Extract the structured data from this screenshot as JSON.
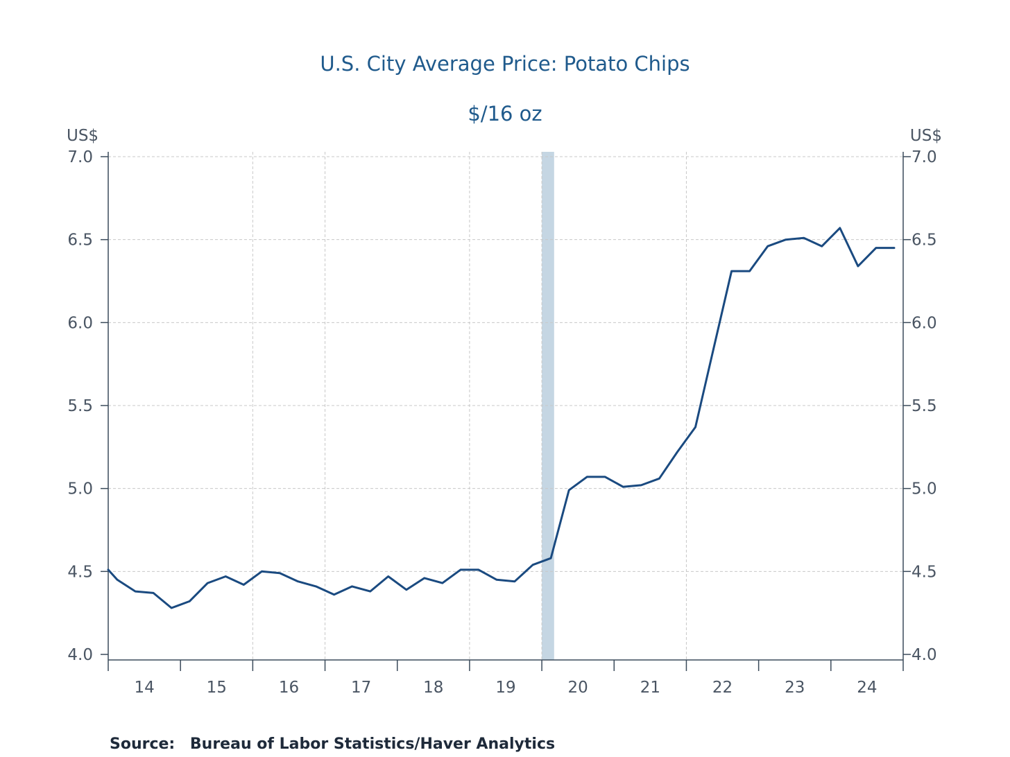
{
  "chart_data": {
    "type": "line",
    "title": "U.S. City Average Price: Potato Chips",
    "subtitle": "$/16 oz",
    "ylabel_left": "US$",
    "ylabel_right": "US$",
    "ylim": [
      4.0,
      7.0
    ],
    "y_ticks": [
      "7.0",
      "6.5",
      "6.0",
      "5.5",
      "5.0",
      "4.5",
      "4.0"
    ],
    "x_tick_labels": [
      "14",
      "15",
      "16",
      "17",
      "18",
      "19",
      "20",
      "21",
      "22",
      "23",
      "24"
    ],
    "x_range": [
      2014.0,
      2025.0
    ],
    "grid": true,
    "recession_shading": {
      "start": 2020.0,
      "end": 2020.17
    },
    "colors": {
      "line": "#1a4a80",
      "recession": "#c5d6e3",
      "axis": "#3a4a5a",
      "grid": "#c8c8c8",
      "title": "#1f5a8c"
    },
    "series": [
      {
        "x": [
          2014.0,
          2014.125,
          2014.375,
          2014.625,
          2014.875,
          2015.125,
          2015.375,
          2015.625,
          2015.875,
          2016.125,
          2016.375,
          2016.625,
          2016.875,
          2017.125,
          2017.375,
          2017.625,
          2017.875,
          2018.125,
          2018.375,
          2018.625,
          2018.875,
          2019.125,
          2019.375,
          2019.625,
          2019.875,
          2020.125,
          2020.375,
          2020.625,
          2020.875,
          2021.125,
          2021.375,
          2021.625,
          2021.875,
          2022.125,
          2022.375,
          2022.625,
          2022.875,
          2023.125,
          2023.375,
          2023.625,
          2023.875,
          2024.125,
          2024.375,
          2024.625,
          2024.875
        ],
        "values": [
          4.51,
          4.45,
          4.38,
          4.37,
          4.28,
          4.32,
          4.43,
          4.47,
          4.42,
          4.5,
          4.49,
          4.44,
          4.41,
          4.36,
          4.41,
          4.38,
          4.47,
          4.39,
          4.46,
          4.43,
          4.51,
          4.51,
          4.45,
          4.44,
          4.54,
          4.58,
          4.99,
          5.07,
          5.07,
          5.01,
          5.02,
          5.06,
          5.22,
          5.37,
          5.84,
          6.31,
          6.31,
          6.46,
          6.5,
          6.51,
          6.46,
          6.57,
          6.34,
          6.45,
          6.45
        ]
      }
    ]
  },
  "source_label": "Source:",
  "source_text": "Bureau of Labor Statistics/Haver Analytics"
}
